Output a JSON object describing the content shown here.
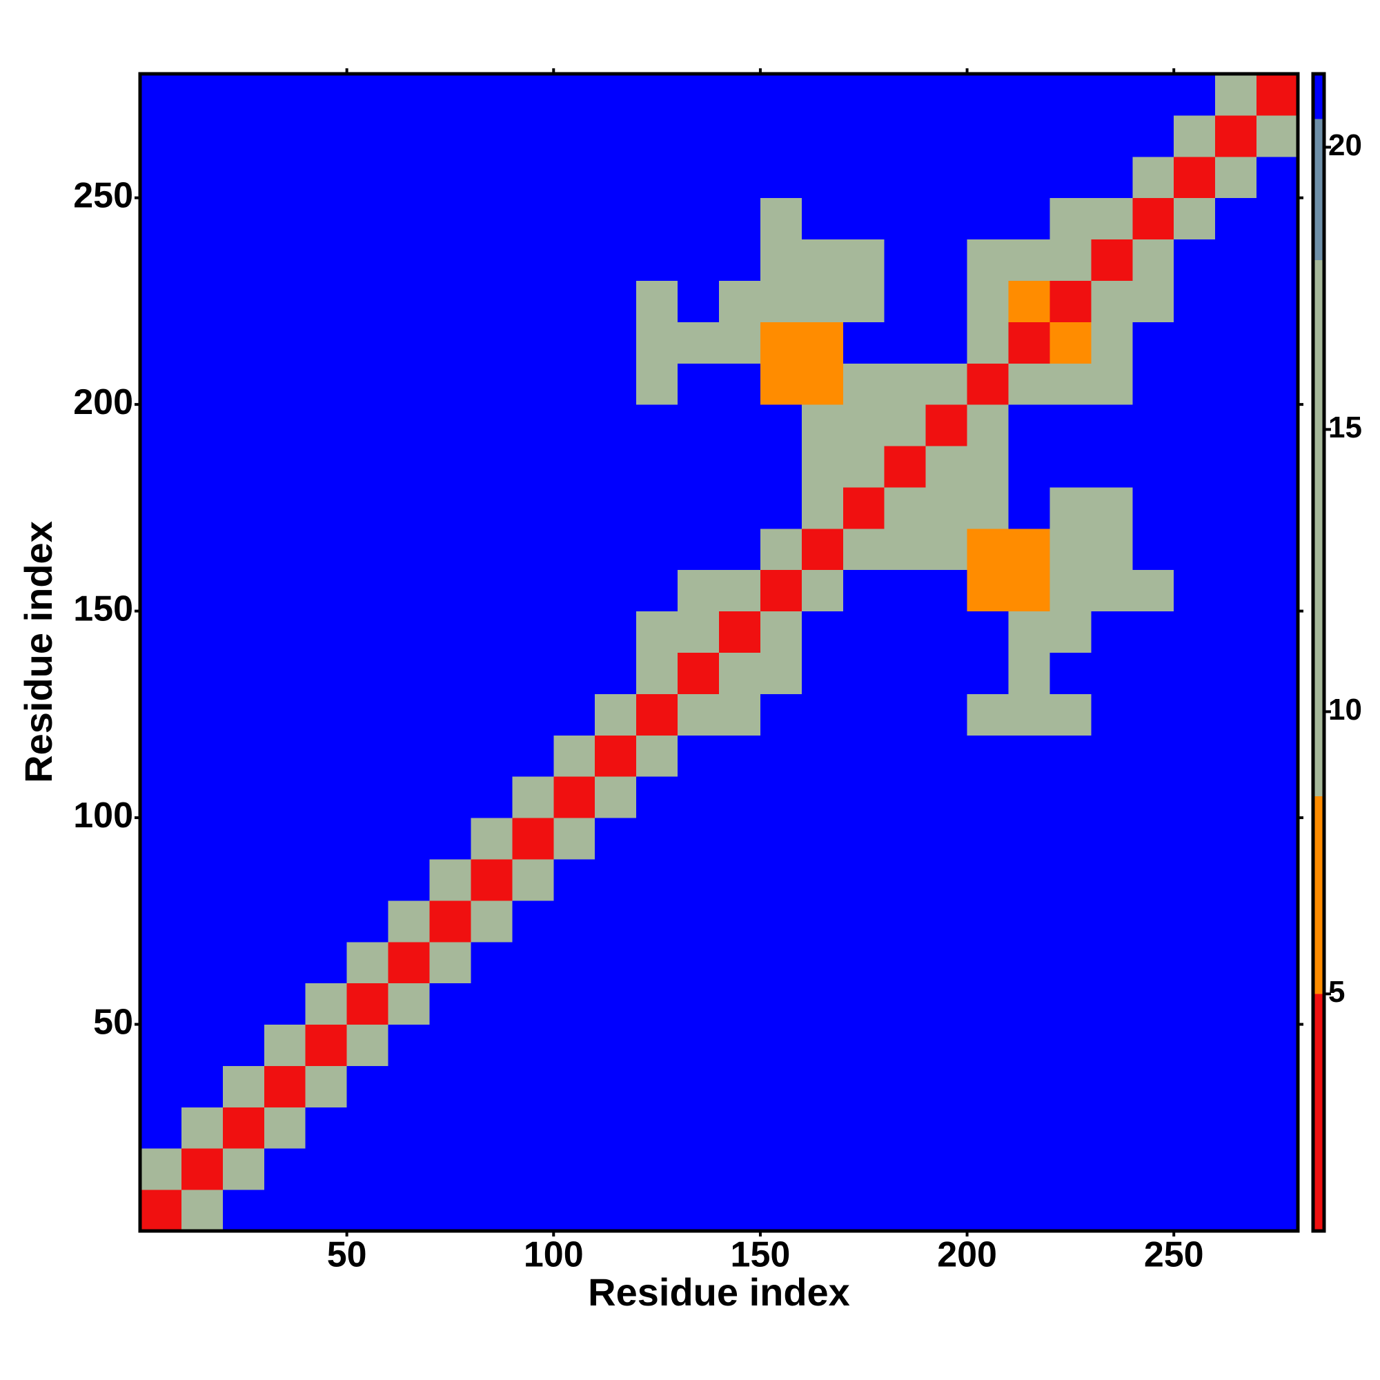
{
  "chart_data": {
    "type": "heatmap",
    "xlabel": "Residue index",
    "ylabel": "Residue index",
    "xlim": [
      0,
      280
    ],
    "ylim": [
      0,
      280
    ],
    "xticks": [
      50,
      100,
      150,
      200,
      250
    ],
    "yticks": [
      50,
      100,
      150,
      200,
      250
    ],
    "x": [
      5,
      15,
      25,
      35,
      45,
      55,
      65,
      75,
      85,
      95,
      105,
      115,
      125,
      135,
      145,
      155,
      165,
      175,
      185,
      195,
      205,
      215,
      225,
      235,
      245,
      255,
      265,
      275
    ],
    "y": [
      5,
      15,
      25,
      35,
      45,
      55,
      65,
      75,
      85,
      95,
      105,
      115,
      125,
      135,
      145,
      155,
      165,
      175,
      185,
      195,
      205,
      215,
      225,
      235,
      245,
      255,
      265,
      275
    ],
    "z": [
      [
        4,
        12,
        21,
        21,
        21,
        21,
        21,
        21,
        21,
        21,
        21,
        21,
        21,
        21,
        21,
        21,
        21,
        21,
        21,
        21,
        21,
        21,
        21,
        21,
        21,
        21,
        21,
        21
      ],
      [
        12,
        4,
        11,
        21,
        21,
        21,
        21,
        21,
        21,
        21,
        21,
        21,
        21,
        21,
        21,
        21,
        21,
        21,
        21,
        21,
        21,
        21,
        21,
        21,
        21,
        21,
        21,
        21
      ],
      [
        21,
        11,
        4,
        13,
        21,
        21,
        21,
        21,
        21,
        21,
        21,
        21,
        21,
        21,
        21,
        21,
        21,
        21,
        21,
        21,
        21,
        21,
        21,
        21,
        21,
        21,
        21,
        21
      ],
      [
        21,
        21,
        13,
        4,
        13,
        21,
        21,
        21,
        21,
        21,
        21,
        21,
        21,
        21,
        21,
        21,
        21,
        21,
        21,
        21,
        21,
        21,
        21,
        21,
        21,
        21,
        21,
        21
      ],
      [
        21,
        21,
        21,
        13,
        4,
        13,
        21,
        21,
        21,
        21,
        21,
        21,
        21,
        21,
        21,
        21,
        21,
        21,
        21,
        21,
        21,
        21,
        21,
        21,
        21,
        21,
        21,
        21
      ],
      [
        21,
        21,
        21,
        21,
        13,
        4,
        11,
        21,
        21,
        21,
        21,
        21,
        21,
        21,
        21,
        21,
        21,
        21,
        21,
        21,
        21,
        21,
        21,
        21,
        21,
        21,
        21,
        21
      ],
      [
        21,
        21,
        21,
        21,
        21,
        11,
        4,
        13,
        21,
        21,
        21,
        21,
        21,
        21,
        21,
        21,
        21,
        21,
        21,
        21,
        21,
        21,
        21,
        21,
        21,
        21,
        21,
        21
      ],
      [
        21,
        21,
        21,
        21,
        21,
        21,
        13,
        4,
        13,
        21,
        21,
        21,
        21,
        21,
        21,
        21,
        21,
        21,
        21,
        21,
        21,
        21,
        21,
        21,
        21,
        21,
        21,
        21
      ],
      [
        21,
        21,
        21,
        21,
        21,
        21,
        21,
        13,
        4,
        10,
        21,
        21,
        21,
        21,
        21,
        21,
        21,
        21,
        21,
        21,
        21,
        21,
        21,
        21,
        21,
        21,
        21,
        21
      ],
      [
        21,
        21,
        21,
        21,
        21,
        21,
        21,
        21,
        10,
        4,
        11,
        21,
        21,
        21,
        21,
        21,
        21,
        21,
        21,
        21,
        21,
        21,
        21,
        21,
        21,
        21,
        21,
        21
      ],
      [
        21,
        21,
        21,
        21,
        21,
        21,
        21,
        21,
        21,
        11,
        4,
        10,
        21,
        21,
        21,
        21,
        21,
        21,
        21,
        21,
        21,
        21,
        21,
        21,
        21,
        21,
        21,
        21
      ],
      [
        21,
        21,
        21,
        21,
        21,
        21,
        21,
        21,
        21,
        21,
        10,
        4,
        13,
        21,
        21,
        21,
        21,
        21,
        21,
        21,
        21,
        21,
        21,
        21,
        21,
        21,
        21,
        21
      ],
      [
        21,
        21,
        21,
        21,
        21,
        21,
        21,
        21,
        21,
        21,
        21,
        13,
        4,
        10,
        15,
        21,
        21,
        21,
        21,
        21,
        17,
        16,
        16,
        21,
        21,
        21,
        21,
        21
      ],
      [
        21,
        21,
        21,
        21,
        21,
        21,
        21,
        21,
        21,
        21,
        21,
        21,
        10,
        4,
        10,
        16,
        21,
        21,
        21,
        21,
        21,
        14,
        21,
        21,
        21,
        21,
        21,
        21
      ],
      [
        21,
        21,
        21,
        21,
        21,
        21,
        21,
        21,
        21,
        21,
        21,
        21,
        15,
        10,
        4,
        10,
        21,
        21,
        21,
        21,
        21,
        14,
        14,
        21,
        21,
        21,
        21,
        21
      ],
      [
        21,
        21,
        21,
        21,
        21,
        21,
        21,
        21,
        21,
        21,
        21,
        21,
        21,
        16,
        10,
        4,
        13,
        21,
        21,
        21,
        7,
        7,
        14,
        15,
        16,
        21,
        21,
        21
      ],
      [
        21,
        21,
        21,
        21,
        21,
        21,
        21,
        21,
        21,
        21,
        21,
        21,
        21,
        21,
        21,
        13,
        4,
        10,
        14,
        16,
        7,
        7,
        14,
        16,
        21,
        21,
        21,
        21
      ],
      [
        21,
        21,
        21,
        21,
        21,
        21,
        21,
        21,
        21,
        21,
        21,
        21,
        21,
        21,
        21,
        21,
        10,
        4,
        10,
        14,
        14,
        21,
        14,
        16,
        21,
        21,
        21,
        21
      ],
      [
        21,
        21,
        21,
        21,
        21,
        21,
        21,
        21,
        21,
        21,
        21,
        21,
        21,
        21,
        21,
        21,
        14,
        10,
        4,
        10,
        15,
        21,
        21,
        21,
        21,
        21,
        21,
        21
      ],
      [
        21,
        21,
        21,
        21,
        21,
        21,
        21,
        21,
        21,
        21,
        21,
        21,
        21,
        21,
        21,
        21,
        16,
        14,
        10,
        4,
        10,
        21,
        21,
        21,
        21,
        21,
        21,
        21
      ],
      [
        21,
        21,
        21,
        21,
        21,
        21,
        21,
        21,
        21,
        21,
        21,
        21,
        17,
        21,
        21,
        7,
        7,
        14,
        15,
        10,
        4,
        10,
        13,
        15,
        21,
        21,
        21,
        21
      ],
      [
        21,
        21,
        21,
        21,
        21,
        21,
        21,
        21,
        21,
        21,
        21,
        21,
        16,
        14,
        14,
        7,
        7,
        21,
        21,
        21,
        10,
        4,
        7,
        13,
        21,
        21,
        21,
        21
      ],
      [
        21,
        21,
        21,
        21,
        21,
        21,
        21,
        21,
        21,
        21,
        21,
        21,
        16,
        21,
        14,
        14,
        14,
        14,
        21,
        21,
        13,
        7,
        4,
        10,
        14,
        21,
        21,
        21
      ],
      [
        21,
        21,
        21,
        21,
        21,
        21,
        21,
        21,
        21,
        21,
        21,
        21,
        21,
        21,
        21,
        15,
        16,
        16,
        21,
        21,
        15,
        13,
        10,
        4,
        11,
        21,
        21,
        21
      ],
      [
        21,
        21,
        21,
        21,
        21,
        21,
        21,
        21,
        21,
        21,
        21,
        21,
        21,
        21,
        21,
        16,
        21,
        21,
        21,
        21,
        21,
        21,
        14,
        11,
        4,
        11,
        21,
        21
      ],
      [
        21,
        21,
        21,
        21,
        21,
        21,
        21,
        21,
        21,
        21,
        21,
        21,
        21,
        21,
        21,
        21,
        21,
        21,
        21,
        21,
        21,
        21,
        21,
        21,
        11,
        4,
        11,
        21
      ],
      [
        21,
        21,
        21,
        21,
        21,
        21,
        21,
        21,
        21,
        21,
        21,
        21,
        21,
        21,
        21,
        21,
        21,
        21,
        21,
        21,
        21,
        21,
        21,
        21,
        21,
        11,
        4,
        11
      ],
      [
        21,
        21,
        21,
        21,
        21,
        21,
        21,
        21,
        21,
        21,
        21,
        21,
        21,
        21,
        21,
        21,
        21,
        21,
        21,
        21,
        21,
        21,
        21,
        21,
        21,
        21,
        11,
        4
      ]
    ],
    "zlim": [
      0.8,
      21.3
    ],
    "zticks": [
      5,
      10,
      15,
      20
    ],
    "colorscale": [
      {
        "from": 0.8,
        "color": "#f01010"
      },
      {
        "from": 5,
        "color": "#ff8c00"
      },
      {
        "from": 8.5,
        "color": "#a6b89a"
      },
      {
        "from": 18,
        "color": "#6e8fa8"
      },
      {
        "from": 20.5,
        "color": "#0000ff"
      }
    ]
  }
}
